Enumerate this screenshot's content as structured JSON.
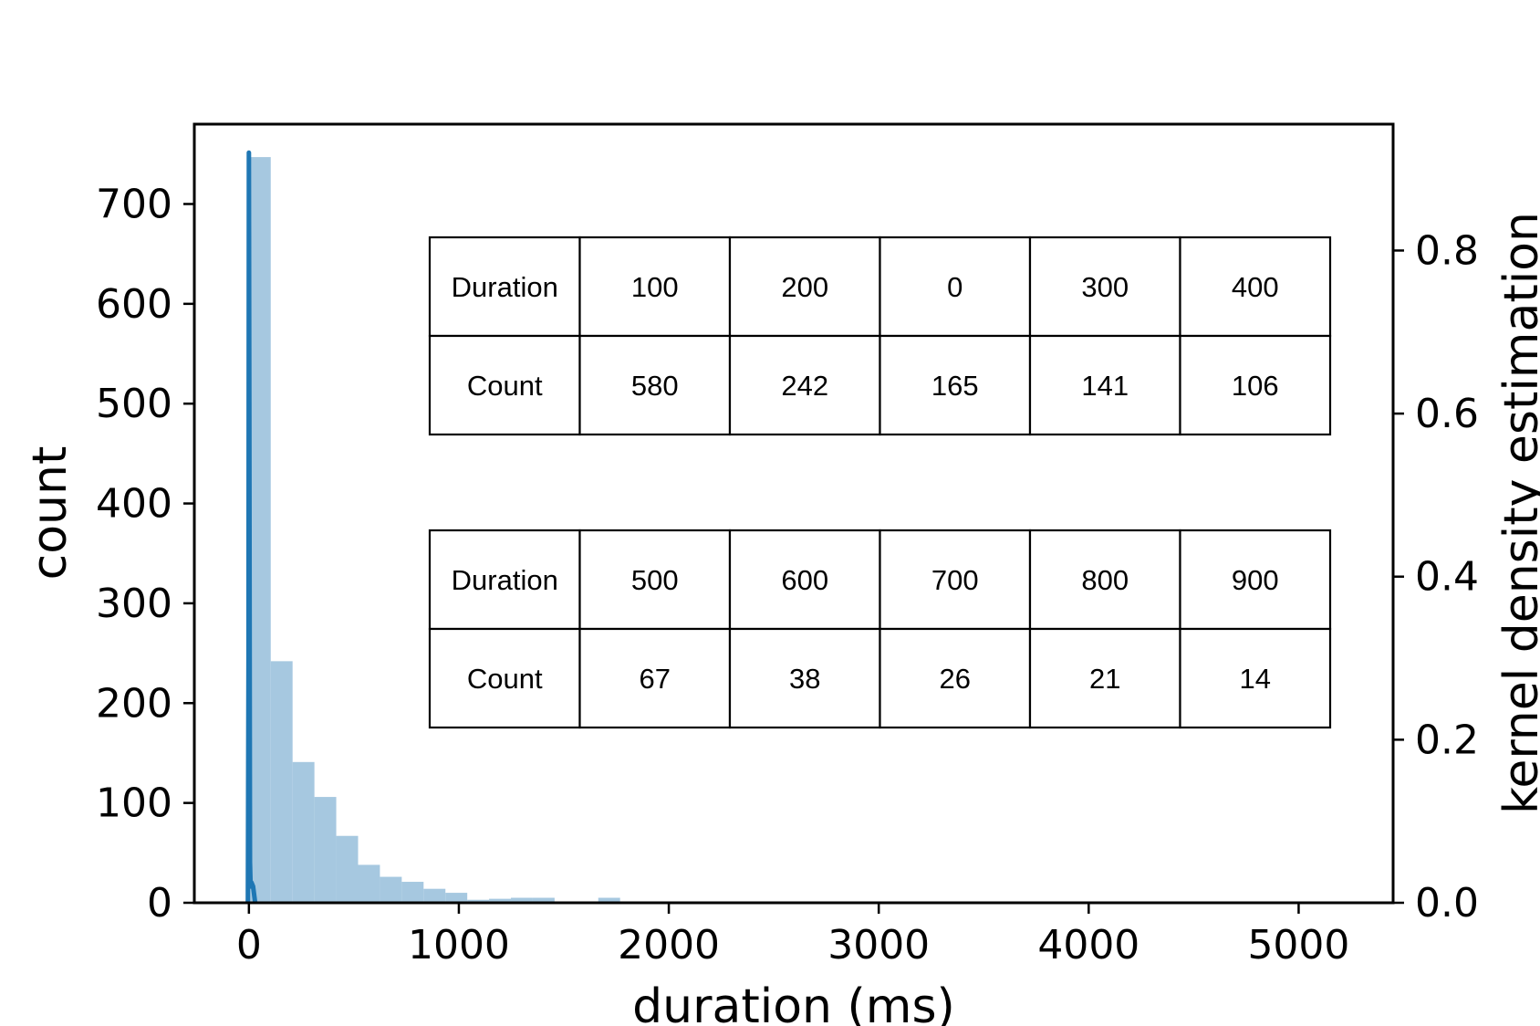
{
  "chart_data": {
    "type": "bar",
    "xlabel": "duration (ms)",
    "ylabel": "count",
    "y2label": "kernel density estimation",
    "xlim": [
      -260,
      5450
    ],
    "ylim": [
      0,
      780
    ],
    "y2lim": [
      0,
      0.955
    ],
    "x_ticks": [
      0,
      1000,
      2000,
      3000,
      4000,
      5000
    ],
    "y_ticks": [
      0,
      100,
      200,
      300,
      400,
      500,
      600,
      700
    ],
    "y2_ticks": [
      "0.0",
      "0.2",
      "0.4",
      "0.6",
      "0.8"
    ],
    "histogram": {
      "bin_width": 104,
      "bin_starts": [
        0,
        104,
        208,
        312,
        416,
        520,
        624,
        728,
        832,
        936,
        1040,
        1144,
        1248,
        1352,
        1456,
        1560,
        1664,
        1768,
        1872,
        1976
      ],
      "counts": [
        747,
        242,
        141,
        106,
        67,
        38,
        26,
        21,
        14,
        10,
        3,
        4,
        5,
        5,
        0,
        0,
        5,
        1,
        1,
        1
      ],
      "color": "#a6c8e0"
    },
    "kde": {
      "color": "#1f77b4",
      "x": [
        -5,
        -2,
        0,
        2,
        5,
        8,
        12,
        20,
        30
      ],
      "y": [
        0.0,
        0.3,
        0.92,
        0.6,
        0.05,
        0.02,
        0.025,
        0.02,
        0.0
      ]
    },
    "grid": false,
    "legend": "none"
  },
  "tables": [
    {
      "rows": [
        [
          "Duration",
          "100",
          "200",
          "0",
          "300",
          "400"
        ],
        [
          "Count",
          "580",
          "242",
          "165",
          "141",
          "106"
        ]
      ]
    },
    {
      "rows": [
        [
          "Duration",
          "500",
          "600",
          "700",
          "800",
          "900"
        ],
        [
          "Count",
          "67",
          "38",
          "26",
          "21",
          "14"
        ]
      ]
    }
  ]
}
